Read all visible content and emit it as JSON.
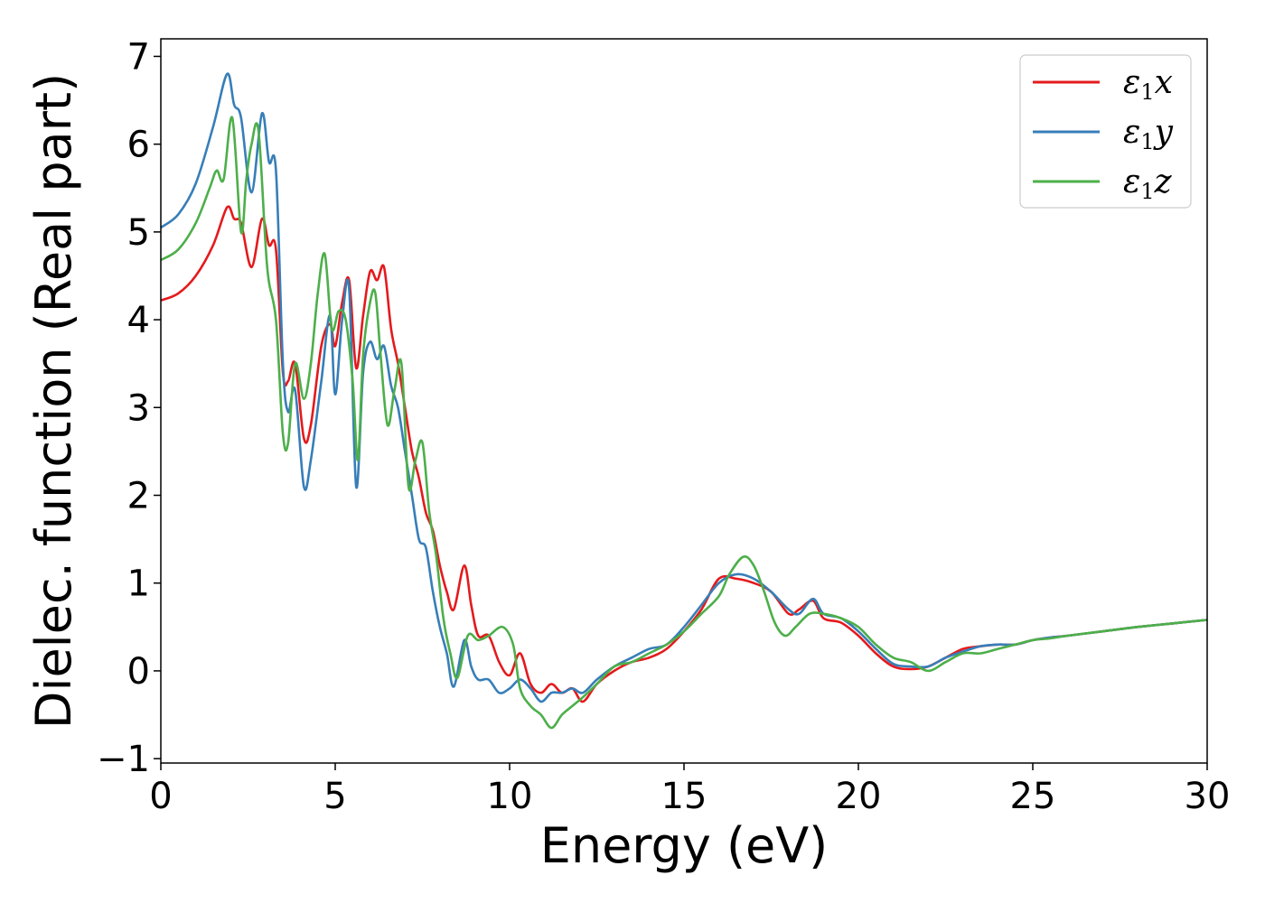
{
  "chart_data": {
    "type": "line",
    "title": "",
    "xlabel": "Energy (eV)",
    "ylabel": "Dielec. function (Real part)",
    "xlim": [
      0,
      30
    ],
    "ylim": [
      -1.05,
      7.2
    ],
    "xticks": [
      0,
      5,
      10,
      15,
      20,
      25,
      30
    ],
    "xtick_labels": [
      "0",
      "5",
      "10",
      "15",
      "20",
      "25",
      "30"
    ],
    "yticks": [
      -1,
      0,
      1,
      2,
      3,
      4,
      5,
      6,
      7
    ],
    "ytick_labels": [
      "−1",
      "0",
      "1",
      "2",
      "3",
      "4",
      "5",
      "6",
      "7"
    ],
    "grid": false,
    "legend_position": "top-right",
    "series": [
      {
        "name": "ε1x",
        "legend_main": "ε",
        "legend_sub": "1",
        "legend_var": "x",
        "color": "#e41a1c",
        "x": [
          0,
          0.5,
          1.0,
          1.5,
          1.9,
          2.1,
          2.3,
          2.6,
          2.9,
          3.1,
          3.3,
          3.5,
          3.65,
          3.85,
          4.1,
          4.3,
          4.6,
          4.85,
          5.0,
          5.2,
          5.4,
          5.6,
          5.8,
          6.0,
          6.2,
          6.4,
          6.6,
          6.8,
          7.0,
          7.2,
          7.4,
          7.6,
          7.8,
          8.0,
          8.2,
          8.4,
          8.7,
          8.9,
          9.1,
          9.4,
          9.7,
          10.0,
          10.3,
          10.6,
          10.9,
          11.2,
          11.5,
          11.8,
          12.1,
          12.5,
          13.0,
          13.5,
          14.0,
          14.5,
          15.0,
          15.5,
          16.0,
          16.5,
          17.0,
          17.5,
          18.0,
          18.3,
          18.7,
          19.0,
          19.5,
          20.0,
          20.5,
          21.0,
          21.5,
          22.0,
          22.5,
          23.0,
          23.5,
          24.0,
          24.5,
          25.0,
          25.5,
          26.0,
          27.0,
          28.0,
          29.0,
          30.0
        ],
        "y": [
          4.22,
          4.3,
          4.5,
          4.85,
          5.28,
          5.15,
          5.1,
          4.6,
          5.15,
          4.85,
          4.8,
          3.4,
          3.3,
          3.5,
          2.65,
          2.8,
          3.7,
          3.95,
          3.7,
          4.2,
          4.45,
          3.45,
          4.05,
          4.55,
          4.45,
          4.6,
          3.9,
          3.5,
          3.0,
          2.5,
          2.2,
          1.8,
          1.6,
          1.2,
          0.9,
          0.7,
          1.2,
          0.75,
          0.4,
          0.4,
          0.1,
          -0.05,
          0.2,
          -0.15,
          -0.25,
          -0.15,
          -0.25,
          -0.2,
          -0.35,
          -0.15,
          0.0,
          0.1,
          0.15,
          0.25,
          0.45,
          0.7,
          1.05,
          1.05,
          1.0,
          0.9,
          0.65,
          0.7,
          0.8,
          0.6,
          0.55,
          0.4,
          0.2,
          0.05,
          0.02,
          0.05,
          0.15,
          0.25,
          0.28,
          0.3,
          0.3,
          0.35,
          0.38,
          0.4,
          0.45,
          0.5,
          0.54,
          0.58
        ]
      },
      {
        "name": "ε1y",
        "legend_main": "ε",
        "legend_sub": "1",
        "legend_var": "y",
        "color": "#377eb8",
        "x": [
          0,
          0.5,
          1.0,
          1.5,
          1.9,
          2.1,
          2.3,
          2.6,
          2.9,
          3.1,
          3.3,
          3.5,
          3.65,
          3.85,
          4.1,
          4.3,
          4.6,
          4.85,
          5.0,
          5.2,
          5.4,
          5.6,
          5.8,
          6.0,
          6.2,
          6.4,
          6.6,
          6.8,
          7.0,
          7.2,
          7.4,
          7.6,
          7.8,
          8.0,
          8.2,
          8.4,
          8.7,
          8.9,
          9.1,
          9.4,
          9.7,
          10.0,
          10.3,
          10.6,
          10.9,
          11.2,
          11.5,
          11.8,
          12.1,
          12.5,
          13.0,
          13.5,
          14.0,
          14.5,
          15.0,
          15.5,
          16.0,
          16.5,
          17.0,
          17.5,
          18.0,
          18.3,
          18.7,
          19.0,
          19.5,
          20.0,
          20.5,
          21.0,
          21.5,
          22.0,
          22.5,
          23.0,
          23.5,
          24.0,
          24.5,
          25.0,
          25.5,
          26.0,
          27.0,
          28.0,
          29.0,
          30.0
        ],
        "y": [
          5.05,
          5.2,
          5.55,
          6.2,
          6.8,
          6.45,
          6.3,
          5.45,
          6.35,
          5.8,
          5.7,
          3.5,
          2.95,
          3.2,
          2.1,
          2.4,
          3.3,
          4.05,
          3.15,
          4.0,
          4.35,
          2.1,
          3.4,
          3.75,
          3.55,
          3.7,
          3.25,
          3.0,
          2.5,
          2.0,
          1.5,
          1.4,
          0.9,
          0.5,
          0.2,
          -0.18,
          0.35,
          0.05,
          -0.1,
          -0.1,
          -0.25,
          -0.2,
          -0.1,
          -0.2,
          -0.35,
          -0.25,
          -0.25,
          -0.2,
          -0.25,
          -0.1,
          0.05,
          0.15,
          0.25,
          0.3,
          0.5,
          0.75,
          1.0,
          1.1,
          1.05,
          0.9,
          0.7,
          0.65,
          0.82,
          0.65,
          0.6,
          0.45,
          0.25,
          0.08,
          0.05,
          0.05,
          0.15,
          0.22,
          0.28,
          0.3,
          0.3,
          0.35,
          0.38,
          0.4,
          0.45,
          0.5,
          0.54,
          0.58
        ]
      },
      {
        "name": "ε1z",
        "legend_main": "ε",
        "legend_sub": "1",
        "legend_var": "z",
        "color": "#4daf4a",
        "x": [
          0,
          0.5,
          1.0,
          1.4,
          1.6,
          1.8,
          2.05,
          2.3,
          2.45,
          2.6,
          2.8,
          3.05,
          3.3,
          3.5,
          3.65,
          3.85,
          4.1,
          4.3,
          4.5,
          4.7,
          4.9,
          5.1,
          5.3,
          5.5,
          5.65,
          5.8,
          6.0,
          6.15,
          6.3,
          6.5,
          6.7,
          6.9,
          7.1,
          7.3,
          7.5,
          7.7,
          7.9,
          8.1,
          8.3,
          8.5,
          8.8,
          9.1,
          9.4,
          9.8,
          10.1,
          10.3,
          10.6,
          10.9,
          11.2,
          11.5,
          11.8,
          12.1,
          12.5,
          13.0,
          13.5,
          14.0,
          14.5,
          15.0,
          15.5,
          16.0,
          16.3,
          16.7,
          17.0,
          17.3,
          17.6,
          17.9,
          18.2,
          18.6,
          19.0,
          19.5,
          20.0,
          20.5,
          21.0,
          21.5,
          22.0,
          22.5,
          23.0,
          23.5,
          24.0,
          24.5,
          25.0,
          25.5,
          26.0,
          27.0,
          28.0,
          29.0,
          30.0
        ],
        "y": [
          4.68,
          4.8,
          5.1,
          5.5,
          5.7,
          5.6,
          6.3,
          5.0,
          5.6,
          6.0,
          6.15,
          4.6,
          4.0,
          2.7,
          2.6,
          3.5,
          3.1,
          3.5,
          4.3,
          4.75,
          3.9,
          4.1,
          4.0,
          3.3,
          2.4,
          3.6,
          4.2,
          4.3,
          3.6,
          2.8,
          3.2,
          3.5,
          2.1,
          2.4,
          2.6,
          1.8,
          1.3,
          0.6,
          0.2,
          -0.08,
          0.4,
          0.35,
          0.4,
          0.5,
          0.3,
          -0.2,
          -0.4,
          -0.5,
          -0.65,
          -0.5,
          -0.4,
          -0.3,
          -0.15,
          0.05,
          0.1,
          0.2,
          0.3,
          0.45,
          0.65,
          0.85,
          1.1,
          1.3,
          1.2,
          0.9,
          0.55,
          0.4,
          0.5,
          0.65,
          0.65,
          0.6,
          0.5,
          0.3,
          0.15,
          0.1,
          0.0,
          0.1,
          0.2,
          0.2,
          0.25,
          0.3,
          0.35,
          0.37,
          0.4,
          0.45,
          0.5,
          0.54,
          0.58
        ]
      }
    ]
  }
}
